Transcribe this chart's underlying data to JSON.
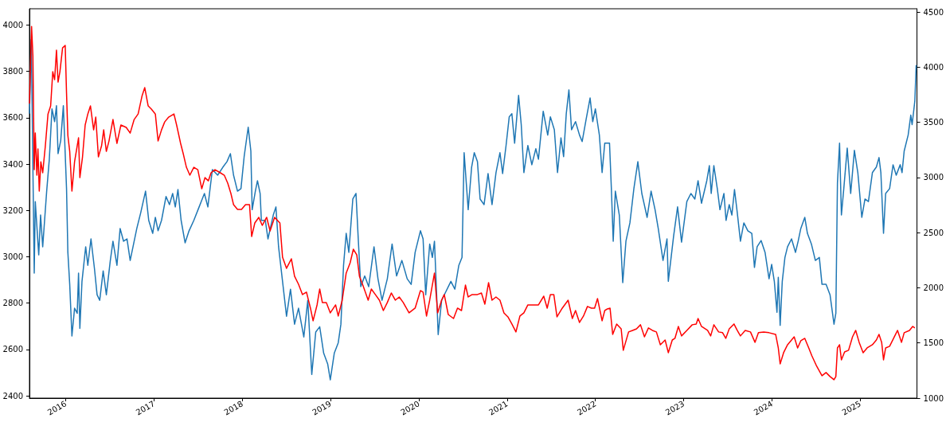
{
  "chart_data": {
    "type": "line",
    "xlim": [
      2015.589,
      2025.643
    ],
    "xticks": [
      2016,
      2017,
      2018,
      2019,
      2020,
      2021,
      2022,
      2023,
      2024,
      2025
    ],
    "ylim": [
      2390,
      4070
    ],
    "yticks": [
      2400,
      2600,
      2800,
      3000,
      3200,
      3400,
      3600,
      3800,
      4000
    ],
    "y2lim": [
      1000,
      4530
    ],
    "y2ticks": [
      1000,
      1500,
      2000,
      2500,
      3000,
      3500,
      4000,
      4500
    ],
    "grid": false,
    "series": [
      {
        "color": "#1f77b4",
        "x": [
          2015.589,
          2015.61,
          2015.643,
          2015.655,
          2015.694,
          2015.715,
          2015.739,
          2015.784,
          2015.814,
          2015.844,
          2015.874,
          2015.895,
          2015.913,
          2015.943,
          2015.973,
          2016.009,
          2016.024,
          2016.045,
          2016.07,
          2016.1,
          2016.13,
          2016.145,
          2016.16,
          2016.184,
          2016.226,
          2016.25,
          2016.286,
          2016.325,
          2016.355,
          2016.385,
          2016.424,
          2016.46,
          2016.505,
          2016.535,
          2016.58,
          2016.616,
          2016.655,
          2016.694,
          2016.73,
          2016.805,
          2016.85,
          2016.904,
          2016.94,
          2016.985,
          2017.015,
          2017.046,
          2017.085,
          2017.136,
          2017.175,
          2017.211,
          2017.241,
          2017.271,
          2017.307,
          2017.352,
          2017.397,
          2017.451,
          2017.511,
          2017.571,
          2017.61,
          2017.661,
          2017.721,
          2017.781,
          2017.826,
          2017.865,
          2017.901,
          2017.946,
          2017.985,
          2018.021,
          2018.067,
          2018.097,
          2018.112,
          2018.148,
          2018.172,
          2018.202,
          2018.216,
          2018.261,
          2018.291,
          2018.351,
          2018.381,
          2018.411,
          2018.456,
          2018.501,
          2018.546,
          2018.592,
          2018.637,
          2018.697,
          2018.742,
          2018.787,
          2018.832,
          2018.877,
          2018.922,
          2018.967,
          2018.997,
          2019.042,
          2019.087,
          2019.117,
          2019.147,
          2019.177,
          2019.207,
          2019.252,
          2019.288,
          2019.312,
          2019.342,
          2019.387,
          2019.432,
          2019.492,
          2019.537,
          2019.583,
          2019.643,
          2019.697,
          2019.748,
          2019.808,
          2019.868,
          2019.913,
          2019.958,
          2020.018,
          2020.048,
          2020.078,
          2020.123,
          2020.153,
          2020.177,
          2020.198,
          2020.219,
          2020.258,
          2020.303,
          2020.363,
          2020.408,
          2020.453,
          2020.489,
          2020.513,
          2020.559,
          2020.598,
          2020.628,
          2020.664,
          2020.694,
          2020.739,
          2020.784,
          2020.829,
          2020.874,
          2020.919,
          2020.949,
          2020.988,
          2021.024,
          2021.054,
          2021.085,
          2021.13,
          2021.16,
          2021.19,
          2021.235,
          2021.28,
          2021.325,
          2021.355,
          2021.409,
          2021.46,
          2021.49,
          2021.535,
          2021.571,
          2021.61,
          2021.64,
          2021.67,
          2021.7,
          2021.73,
          2021.775,
          2021.82,
          2021.85,
          2021.895,
          2021.94,
          2021.97,
          2022.0,
          2022.045,
          2022.076,
          2022.106,
          2022.16,
          2022.181,
          2022.202,
          2022.226,
          2022.271,
          2022.31,
          2022.346,
          2022.391,
          2022.436,
          2022.481,
          2022.526,
          2022.586,
          2022.631,
          2022.676,
          2022.712,
          2022.766,
          2022.811,
          2022.826,
          2022.886,
          2022.931,
          2022.976,
          2023.036,
          2023.082,
          2023.127,
          2023.163,
          2023.202,
          2023.262,
          2023.291,
          2023.312,
          2023.342,
          2023.381,
          2023.411,
          2023.456,
          2023.48,
          2023.516,
          2023.546,
          2023.576,
          2023.607,
          2023.643,
          2023.682,
          2023.727,
          2023.772,
          2023.802,
          2023.832,
          2023.877,
          2023.922,
          2023.967,
          2023.997,
          2024.027,
          2024.057,
          2024.072,
          2024.093,
          2024.117,
          2024.147,
          2024.177,
          2024.222,
          2024.267,
          2024.297,
          2024.327,
          2024.372,
          2024.402,
          2024.447,
          2024.492,
          2024.537,
          2024.567,
          2024.613,
          2024.658,
          2024.703,
          2024.724,
          2024.742,
          2024.766,
          2024.787,
          2024.814,
          2024.853,
          2024.892,
          2024.934,
          2024.973,
          2025.018,
          2025.054,
          2025.093,
          2025.138,
          2025.183,
          2025.213,
          2025.234,
          2025.264,
          2025.288,
          2025.333,
          2025.372,
          2025.408,
          2025.453,
          2025.474,
          2025.498,
          2025.543,
          2025.573,
          2025.588,
          2025.619,
          2025.634
        ],
        "values": [
          3617,
          3937,
          2929,
          3238,
          3008,
          3180,
          3043,
          3283,
          3421,
          3638,
          3583,
          3652,
          3445,
          3501,
          3652,
          3294,
          3019,
          2881,
          2658,
          2778,
          2756,
          2929,
          2691,
          2894,
          3043,
          2963,
          3077,
          2950,
          2836,
          2812,
          2939,
          2836,
          2984,
          3067,
          2963,
          3122,
          3067,
          3077,
          2984,
          3122,
          3191,
          3283,
          3157,
          3101,
          3170,
          3112,
          3157,
          3260,
          3225,
          3273,
          3215,
          3290,
          3157,
          3060,
          3112,
          3157,
          3215,
          3273,
          3215,
          3376,
          3352,
          3387,
          3410,
          3445,
          3352,
          3283,
          3294,
          3432,
          3559,
          3456,
          3203,
          3283,
          3328,
          3273,
          3157,
          3157,
          3077,
          3180,
          3215,
          3043,
          2894,
          2743,
          2860,
          2709,
          2778,
          2654,
          2812,
          2492,
          2675,
          2698,
          2584,
          2538,
          2469,
          2584,
          2629,
          2709,
          2963,
          3101,
          3019,
          3249,
          3273,
          3089,
          2871,
          2917,
          2871,
          3043,
          2905,
          2812,
          2905,
          3055,
          2917,
          2984,
          2905,
          2881,
          3019,
          3112,
          3077,
          2836,
          3055,
          2997,
          3067,
          2871,
          2664,
          2812,
          2847,
          2894,
          2860,
          2963,
          2997,
          3449,
          3203,
          3387,
          3449,
          3410,
          3249,
          3225,
          3359,
          3225,
          3363,
          3449,
          3359,
          3480,
          3604,
          3617,
          3490,
          3696,
          3570,
          3363,
          3480,
          3397,
          3466,
          3421,
          3628,
          3525,
          3604,
          3548,
          3363,
          3513,
          3432,
          3617,
          3720,
          3548,
          3583,
          3525,
          3497,
          3593,
          3685,
          3583,
          3638,
          3525,
          3363,
          3490,
          3490,
          3294,
          3067,
          3283,
          3180,
          2888,
          3067,
          3146,
          3294,
          3410,
          3273,
          3170,
          3283,
          3203,
          3122,
          2984,
          3077,
          2894,
          3089,
          3215,
          3063,
          3238,
          3273,
          3249,
          3328,
          3231,
          3328,
          3393,
          3273,
          3393,
          3294,
          3203,
          3273,
          3157,
          3225,
          3180,
          3290,
          3191,
          3067,
          3146,
          3112,
          3101,
          2954,
          3043,
          3070,
          3019,
          2905,
          2967,
          2894,
          2760,
          2911,
          2704,
          2894,
          2997,
          3043,
          3077,
          3019,
          3067,
          3122,
          3170,
          3101,
          3055,
          2984,
          2997,
          2881,
          2881,
          2836,
          2709,
          2756,
          3318,
          3490,
          3180,
          3294,
          3469,
          3273,
          3459,
          3363,
          3170,
          3249,
          3238,
          3363,
          3387,
          3428,
          3363,
          3101,
          3273,
          3294,
          3397,
          3352,
          3397,
          3363,
          3456,
          3525,
          3611,
          3570,
          3673,
          3827
        ]
      },
      {
        "color": "#ff0000",
        "axis": "y2",
        "x": [
          2015.589,
          2015.613,
          2015.628,
          2015.643,
          2015.655,
          2015.673,
          2015.685,
          2015.7,
          2015.718,
          2015.739,
          2015.769,
          2015.799,
          2015.829,
          2015.853,
          2015.874,
          2015.895,
          2015.913,
          2015.934,
          2015.964,
          2015.994,
          2016.009,
          2016.024,
          2016.045,
          2016.07,
          2016.1,
          2016.145,
          2016.16,
          2016.19,
          2016.22,
          2016.25,
          2016.28,
          2016.316,
          2016.34,
          2016.37,
          2016.406,
          2016.43,
          2016.46,
          2016.49,
          2016.535,
          2016.58,
          2016.625,
          2016.685,
          2016.73,
          2016.775,
          2016.82,
          2016.865,
          2016.895,
          2016.934,
          2016.97,
          2017.015,
          2017.046,
          2017.085,
          2017.121,
          2017.166,
          2017.226,
          2017.256,
          2017.301,
          2017.331,
          2017.367,
          2017.406,
          2017.451,
          2017.496,
          2017.541,
          2017.577,
          2017.616,
          2017.646,
          2017.691,
          2017.751,
          2017.796,
          2017.835,
          2017.871,
          2017.901,
          2017.946,
          2017.991,
          2018.037,
          2018.082,
          2018.106,
          2018.142,
          2018.187,
          2018.226,
          2018.276,
          2018.315,
          2018.366,
          2018.426,
          2018.456,
          2018.501,
          2018.556,
          2018.592,
          2018.637,
          2018.682,
          2018.727,
          2018.772,
          2018.802,
          2018.847,
          2018.877,
          2018.907,
          2018.952,
          2018.997,
          2019.057,
          2019.087,
          2019.132,
          2019.177,
          2019.222,
          2019.258,
          2019.297,
          2019.327,
          2019.372,
          2019.426,
          2019.462,
          2019.507,
          2019.553,
          2019.598,
          2019.643,
          2019.688,
          2019.733,
          2019.778,
          2019.823,
          2019.889,
          2019.958,
          2020.018,
          2020.048,
          2020.087,
          2020.123,
          2020.177,
          2020.213,
          2020.258,
          2020.288,
          2020.333,
          2020.393,
          2020.438,
          2020.483,
          2020.528,
          2020.559,
          2020.604,
          2020.664,
          2020.709,
          2020.748,
          2020.79,
          2020.829,
          2020.874,
          2020.919,
          2020.964,
          2021.009,
          2021.054,
          2021.1,
          2021.145,
          2021.19,
          2021.235,
          2021.295,
          2021.355,
          2021.415,
          2021.454,
          2021.49,
          2021.529,
          2021.565,
          2021.625,
          2021.691,
          2021.739,
          2021.775,
          2021.82,
          2021.865,
          2021.91,
          2021.955,
          2021.991,
          2022.024,
          2022.076,
          2022.106,
          2022.136,
          2022.166,
          2022.196,
          2022.241,
          2022.292,
          2022.316,
          2022.376,
          2022.421,
          2022.466,
          2022.511,
          2022.556,
          2022.601,
          2022.646,
          2022.691,
          2022.736,
          2022.79,
          2022.826,
          2022.871,
          2022.901,
          2022.94,
          2022.976,
          2023.036,
          2023.097,
          2023.142,
          2023.163,
          2023.202,
          2023.271,
          2023.306,
          2023.342,
          2023.396,
          2023.441,
          2023.477,
          2023.516,
          2023.57,
          2023.607,
          2023.643,
          2023.697,
          2023.757,
          2023.808,
          2023.847,
          2023.907,
          2023.967,
          2024.042,
          2024.072,
          2024.093,
          2024.132,
          2024.177,
          2024.222,
          2024.252,
          2024.291,
          2024.327,
          2024.372,
          2024.417,
          2024.453,
          2024.507,
          2024.567,
          2024.613,
          2024.658,
          2024.703,
          2024.724,
          2024.742,
          2024.766,
          2024.787,
          2024.823,
          2024.868,
          2024.913,
          2024.949,
          2024.988,
          2025.033,
          2025.078,
          2025.138,
          2025.183,
          2025.213,
          2025.243,
          2025.264,
          2025.288,
          2025.333,
          2025.378,
          2025.423,
          2025.468,
          2025.498,
          2025.558,
          2025.594,
          2025.619
        ],
        "values": [
          3670,
          4370,
          4103,
          3071,
          3403,
          3021,
          3259,
          2877,
          3143,
          3043,
          3288,
          3576,
          3649,
          3959,
          3887,
          4154,
          3865,
          3959,
          4175,
          4197,
          3764,
          3382,
          3237,
          2877,
          3143,
          3360,
          2999,
          3187,
          3476,
          3576,
          3649,
          3432,
          3548,
          3187,
          3288,
          3432,
          3237,
          3331,
          3526,
          3310,
          3476,
          3454,
          3403,
          3526,
          3576,
          3742,
          3815,
          3649,
          3620,
          3576,
          3331,
          3432,
          3504,
          3548,
          3576,
          3476,
          3310,
          3216,
          3093,
          3021,
          3093,
          3071,
          2898,
          2999,
          2970,
          3043,
          3071,
          3043,
          3021,
          2949,
          2855,
          2754,
          2711,
          2711,
          2754,
          2754,
          2465,
          2588,
          2639,
          2566,
          2639,
          2516,
          2639,
          2588,
          2278,
          2177,
          2263,
          2105,
          2032,
          1939,
          1961,
          1816,
          1701,
          1845,
          1989,
          1867,
          1867,
          1773,
          1845,
          1744,
          1888,
          2134,
          2227,
          2350,
          2299,
          2105,
          2011,
          1888,
          1989,
          1939,
          1888,
          1794,
          1867,
          1953,
          1888,
          1917,
          1867,
          1773,
          1816,
          1975,
          1961,
          1744,
          1888,
          2134,
          1773,
          1888,
          1939,
          1758,
          1722,
          1816,
          1794,
          2025,
          1917,
          1939,
          1939,
          1953,
          1852,
          2047,
          1888,
          1917,
          1888,
          1773,
          1737,
          1672,
          1600,
          1744,
          1773,
          1845,
          1845,
          1845,
          1924,
          1816,
          1939,
          1939,
          1737,
          1816,
          1888,
          1722,
          1794,
          1686,
          1744,
          1831,
          1816,
          1816,
          1903,
          1701,
          1794,
          1809,
          1816,
          1578,
          1672,
          1628,
          1434,
          1600,
          1614,
          1628,
          1665,
          1556,
          1636,
          1614,
          1600,
          1484,
          1527,
          1412,
          1527,
          1542,
          1650,
          1564,
          1614,
          1665,
          1672,
          1722,
          1650,
          1614,
          1564,
          1665,
          1600,
          1593,
          1542,
          1628,
          1672,
          1614,
          1564,
          1614,
          1600,
          1506,
          1593,
          1600,
          1593,
          1578,
          1455,
          1311,
          1412,
          1484,
          1527,
          1556,
          1455,
          1520,
          1542,
          1455,
          1383,
          1289,
          1203,
          1232,
          1196,
          1167,
          1196,
          1455,
          1484,
          1347,
          1419,
          1434,
          1556,
          1614,
          1506,
          1412,
          1455,
          1484,
          1527,
          1578,
          1506,
          1347,
          1455,
          1470,
          1542,
          1614,
          1506,
          1593,
          1614,
          1650,
          1636
        ]
      }
    ]
  }
}
